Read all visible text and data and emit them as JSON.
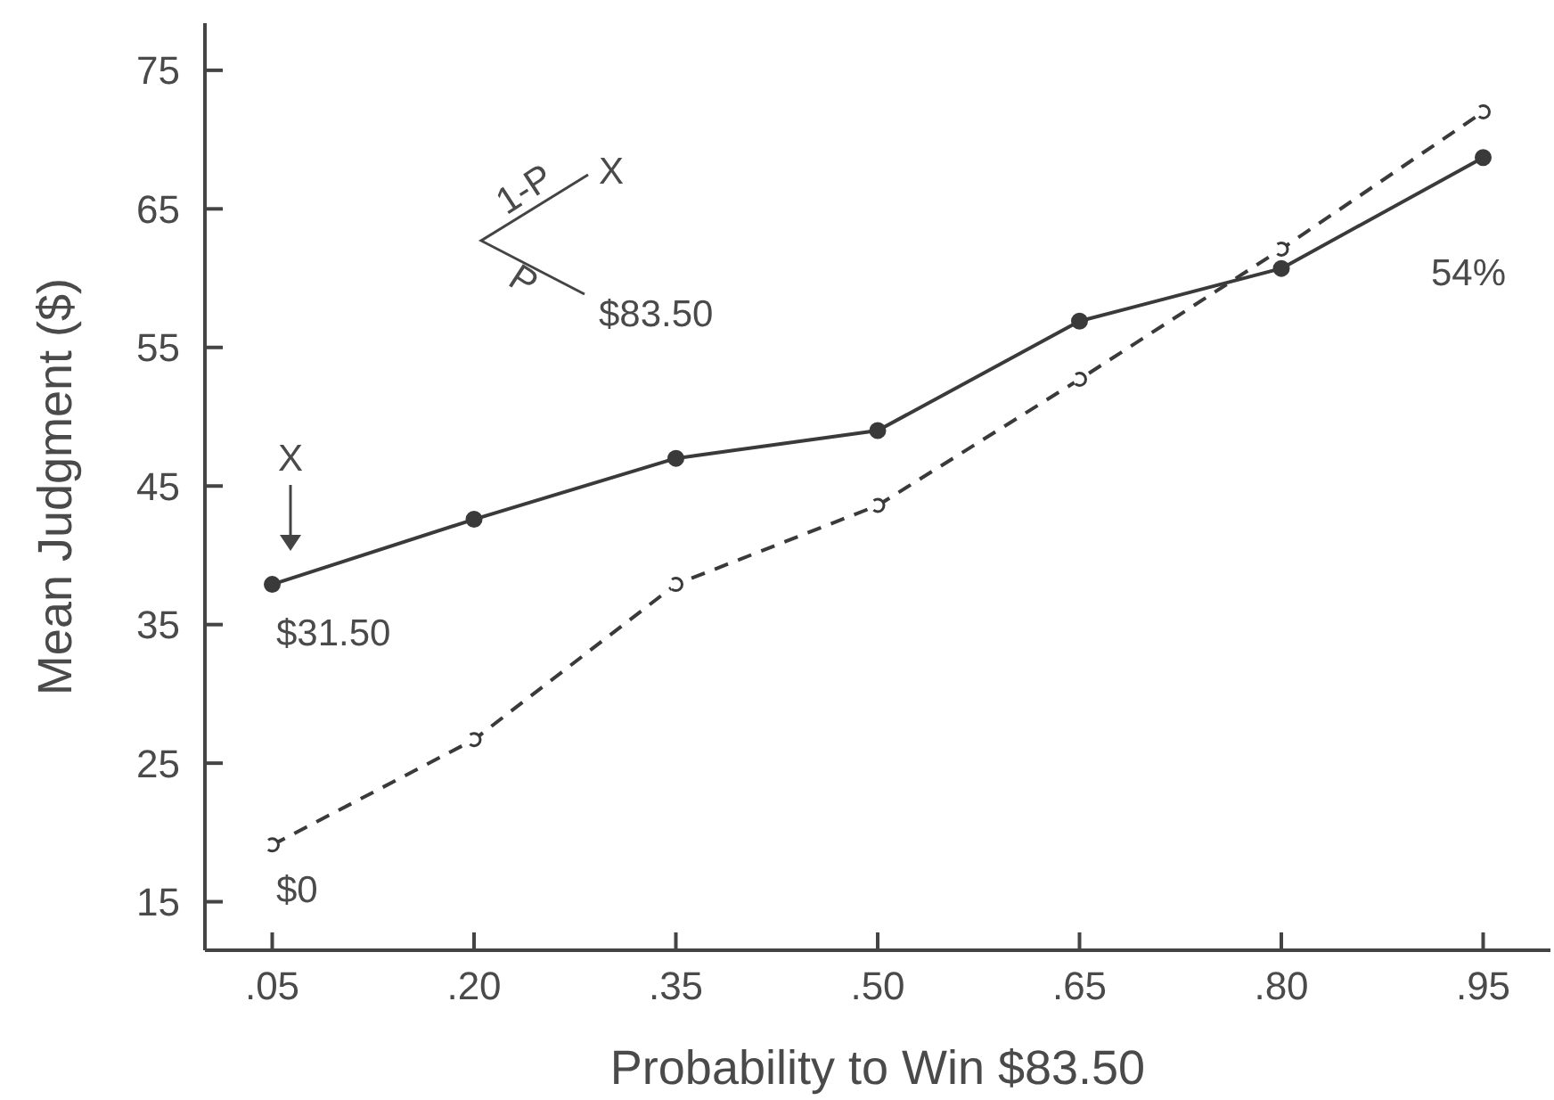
{
  "chart_data": {
    "type": "line",
    "xlabel": "Probability to Win $83.50",
    "ylabel": "Mean Judgment ($)",
    "x": [
      0.05,
      0.2,
      0.35,
      0.5,
      0.65,
      0.8,
      0.95
    ],
    "series": [
      {
        "color": "#3a3a3a",
        "line_style": "solid",
        "values": [
          37.9,
          42.6,
          47.0,
          49.0,
          56.9,
          60.7,
          68.7
        ]
      },
      {
        "color": "#3a3a3a",
        "line_style": "dashed",
        "values": [
          19.1,
          26.7,
          37.9,
          43.6,
          52.7,
          62.1,
          72.0
        ]
      }
    ],
    "xlim": [
      0,
      1
    ],
    "ylim": [
      11.5,
      78.4
    ],
    "xticks": [
      {
        "value": 0.05,
        "label": ".05"
      },
      {
        "value": 0.2,
        "label": ".20"
      },
      {
        "value": 0.35,
        "label": ".35"
      },
      {
        "value": 0.5,
        "label": ".50"
      },
      {
        "value": 0.65,
        "label": ".65"
      },
      {
        "value": 0.8,
        "label": ".80"
      },
      {
        "value": 0.95,
        "label": ".95"
      }
    ],
    "yticks": [
      15,
      25,
      35,
      45,
      55,
      65,
      75
    ],
    "marker": "circle",
    "annotations": [
      "1-P",
      "X",
      "P",
      "$83.50",
      "54%",
      "X",
      "$31.50",
      "$0"
    ]
  }
}
